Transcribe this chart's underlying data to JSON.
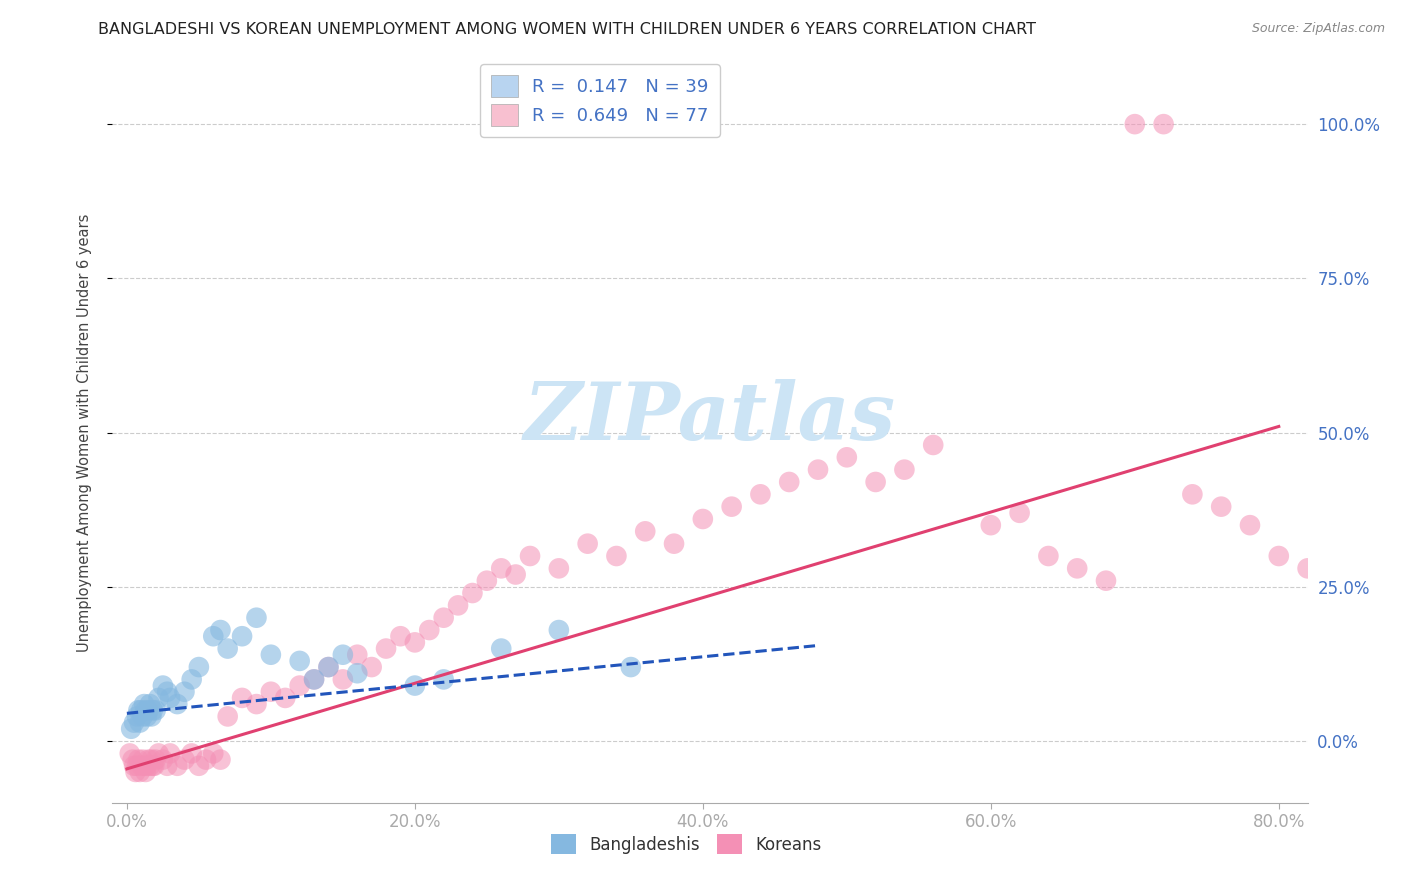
{
  "title": "BANGLADESHI VS KOREAN UNEMPLOYMENT AMONG WOMEN WITH CHILDREN UNDER 6 YEARS CORRELATION CHART",
  "source": "Source: ZipAtlas.com",
  "ylabel": "Unemployment Among Women with Children Under 6 years",
  "xticks": [
    0.0,
    0.2,
    0.4,
    0.6,
    0.8
  ],
  "xtick_labels": [
    "0.0%",
    "20.0%",
    "40.0%",
    "60.0%",
    "80.0%"
  ],
  "yticks": [
    0.0,
    0.25,
    0.5,
    0.75,
    1.0
  ],
  "ytick_labels": [
    "0.0%",
    "25.0%",
    "50.0%",
    "75.0%",
    "100.0%"
  ],
  "xlim": [
    -0.01,
    0.82
  ],
  "ylim": [
    -0.1,
    1.1
  ],
  "bang_color": "#85b8e0",
  "kor_color": "#f490b5",
  "bang_line_color": "#2255bb",
  "kor_line_color": "#e04070",
  "bg_color": "#ffffff",
  "grid_color": "#cccccc",
  "tick_color": "#4472c4",
  "title_color": "#222222",
  "source_color": "#888888",
  "watermark_color": "#cce4f5",
  "watermark_text": "ZIPatlas",
  "legend_top_labels": [
    "R =  0.147   N = 39",
    "R =  0.649   N = 77"
  ],
  "legend_top_patch_colors": [
    "#b8d4f0",
    "#f8c0d0"
  ],
  "legend_bottom_labels": [
    "Bangladeshis",
    "Koreans"
  ],
  "legend_bottom_patch_colors": [
    "#85b8e0",
    "#f490b5"
  ],
  "bang_x": [
    0.003,
    0.005,
    0.007,
    0.008,
    0.009,
    0.01,
    0.011,
    0.012,
    0.013,
    0.014,
    0.015,
    0.016,
    0.017,
    0.018,
    0.02,
    0.022,
    0.025,
    0.028,
    0.03,
    0.035,
    0.04,
    0.045,
    0.05,
    0.06,
    0.065,
    0.07,
    0.08,
    0.09,
    0.1,
    0.12,
    0.13,
    0.14,
    0.15,
    0.16,
    0.2,
    0.22,
    0.26,
    0.3,
    0.35
  ],
  "bang_y": [
    0.02,
    0.03,
    0.04,
    0.05,
    0.03,
    0.05,
    0.04,
    0.06,
    0.05,
    0.04,
    0.05,
    0.06,
    0.04,
    0.05,
    0.05,
    0.07,
    0.09,
    0.08,
    0.07,
    0.06,
    0.08,
    0.1,
    0.12,
    0.17,
    0.18,
    0.15,
    0.17,
    0.2,
    0.14,
    0.13,
    0.1,
    0.12,
    0.14,
    0.11,
    0.09,
    0.1,
    0.15,
    0.18,
    0.12
  ],
  "kor_x": [
    0.002,
    0.004,
    0.005,
    0.006,
    0.007,
    0.008,
    0.009,
    0.01,
    0.011,
    0.012,
    0.013,
    0.014,
    0.015,
    0.016,
    0.017,
    0.018,
    0.019,
    0.02,
    0.022,
    0.025,
    0.028,
    0.03,
    0.035,
    0.04,
    0.045,
    0.05,
    0.055,
    0.06,
    0.065,
    0.07,
    0.08,
    0.09,
    0.1,
    0.11,
    0.12,
    0.13,
    0.14,
    0.15,
    0.16,
    0.17,
    0.18,
    0.19,
    0.2,
    0.21,
    0.22,
    0.23,
    0.24,
    0.25,
    0.26,
    0.27,
    0.28,
    0.3,
    0.32,
    0.34,
    0.36,
    0.38,
    0.4,
    0.42,
    0.44,
    0.46,
    0.48,
    0.5,
    0.52,
    0.54,
    0.56,
    0.6,
    0.62,
    0.64,
    0.66,
    0.68,
    0.7,
    0.72,
    0.74,
    0.76,
    0.78,
    0.8,
    0.82
  ],
  "kor_y": [
    -0.02,
    -0.03,
    -0.04,
    -0.05,
    -0.04,
    -0.03,
    -0.05,
    -0.04,
    -0.03,
    -0.04,
    -0.05,
    -0.04,
    -0.03,
    -0.04,
    -0.03,
    -0.04,
    -0.04,
    -0.03,
    -0.02,
    -0.03,
    -0.04,
    -0.02,
    -0.04,
    -0.03,
    -0.02,
    -0.04,
    -0.03,
    -0.02,
    -0.03,
    0.04,
    0.07,
    0.06,
    0.08,
    0.07,
    0.09,
    0.1,
    0.12,
    0.1,
    0.14,
    0.12,
    0.15,
    0.17,
    0.16,
    0.18,
    0.2,
    0.22,
    0.24,
    0.26,
    0.28,
    0.27,
    0.3,
    0.28,
    0.32,
    0.3,
    0.34,
    0.32,
    0.36,
    0.38,
    0.4,
    0.42,
    0.44,
    0.46,
    0.42,
    0.44,
    0.48,
    0.35,
    0.37,
    0.3,
    0.28,
    0.26,
    1.0,
    1.0,
    0.4,
    0.38,
    0.35,
    0.3,
    0.28
  ],
  "bang_line_x": [
    0.0,
    0.48
  ],
  "bang_line_y": [
    0.045,
    0.155
  ],
  "kor_line_x": [
    0.0,
    0.8
  ],
  "kor_line_y": [
    -0.045,
    0.51
  ]
}
